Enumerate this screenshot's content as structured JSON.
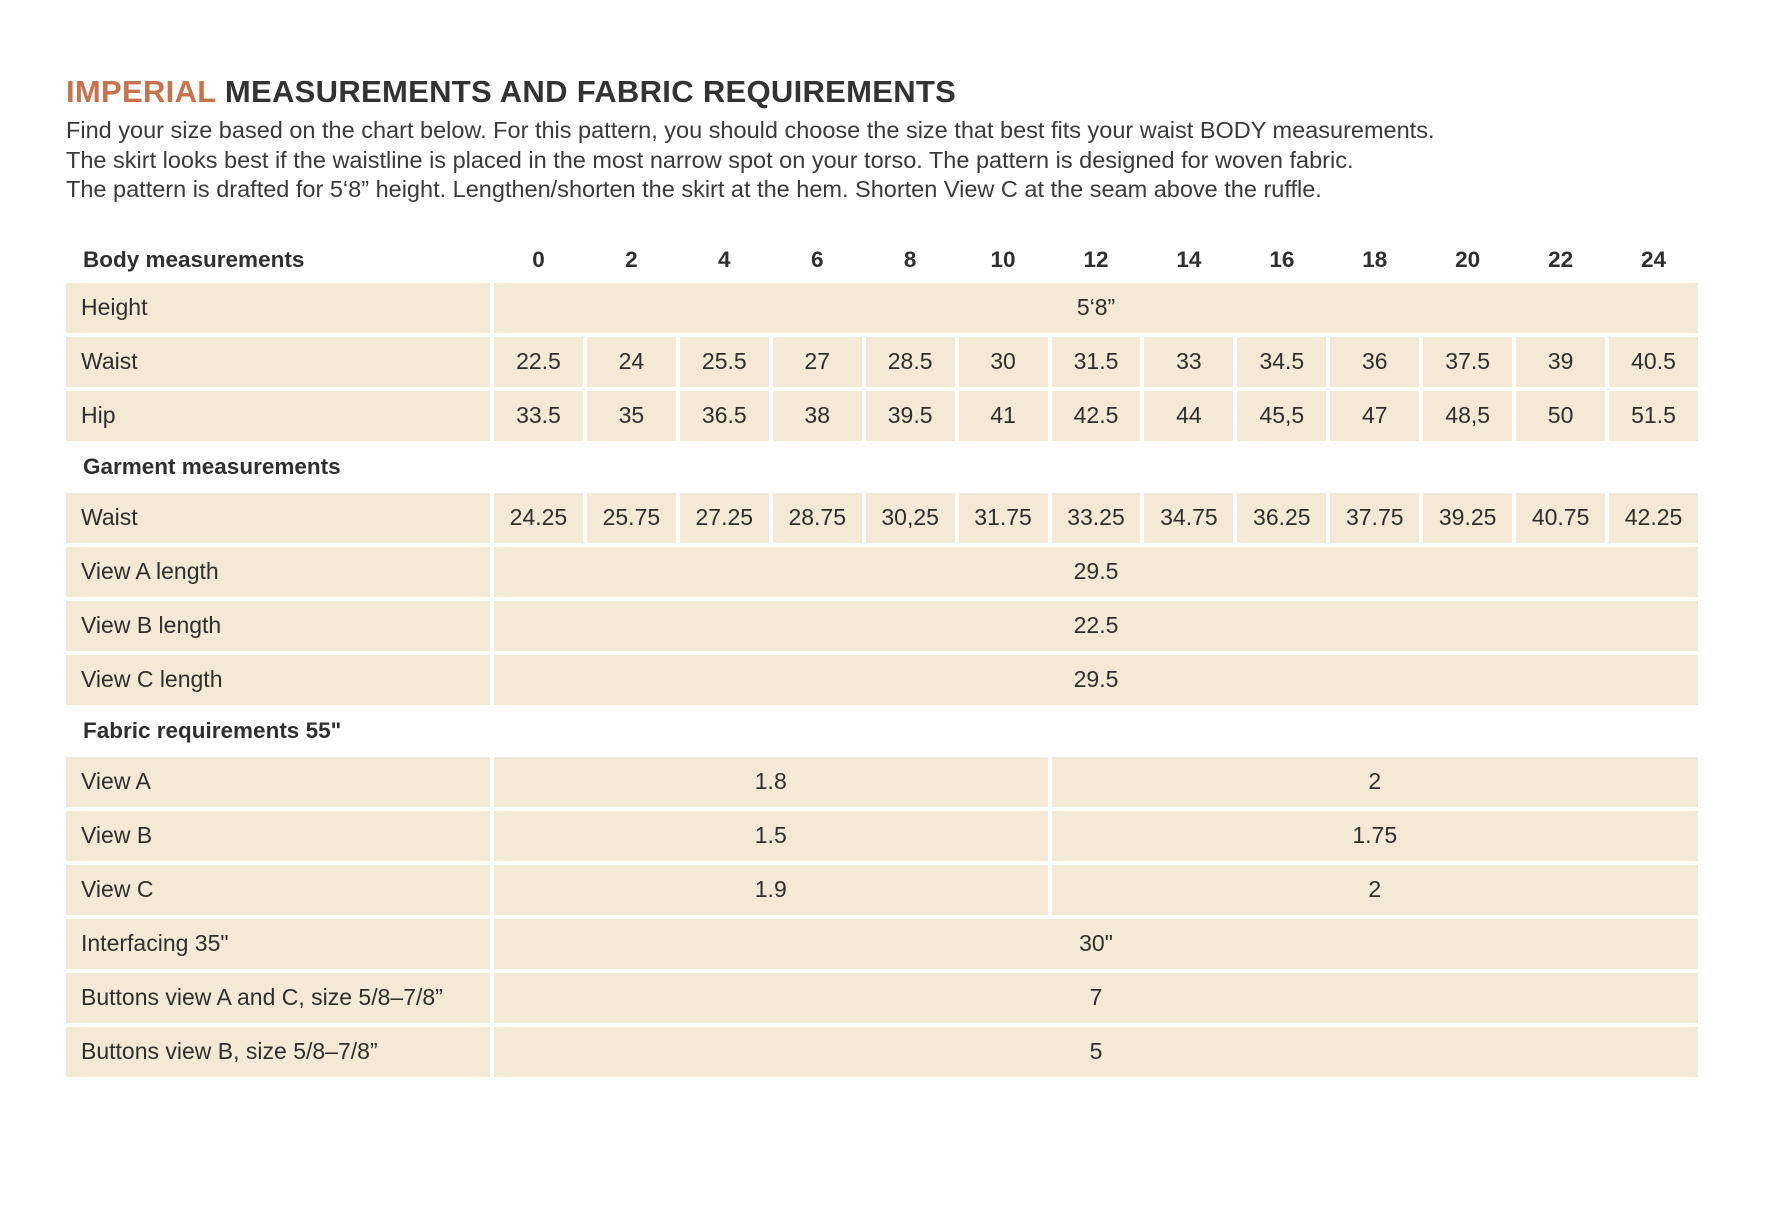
{
  "title": {
    "highlight": "IMPERIAL",
    "rest": " MEASUREMENTS AND FABRIC REQUIREMENTS"
  },
  "intro": {
    "line1": "Find your size based on the chart below. For this pattern, you should choose the size that best fits your waist BODY measurements.",
    "line2": "The skirt looks best if the waistline is placed in the most narrow spot on your torso. The pattern is designed for woven fabric.",
    "line3": "The pattern is drafted for 5‘8” height. Lengthen/shorten the skirt at the hem. Shorten View C at the seam above the ruffle."
  },
  "colors": {
    "accent": "#C8724E",
    "row_band": "#F3E9D4",
    "text": "#2f2f2f"
  },
  "table": {
    "rows": [
      {
        "kind": "header",
        "label": "Body measurements",
        "cells": [
          {
            "text": "0"
          },
          {
            "text": "2"
          },
          {
            "text": "4"
          },
          {
            "text": "6"
          },
          {
            "text": "8"
          },
          {
            "text": "10"
          },
          {
            "text": "12"
          },
          {
            "text": "14"
          },
          {
            "text": "16"
          },
          {
            "text": "18"
          },
          {
            "text": "20"
          },
          {
            "text": "22"
          },
          {
            "text": "24"
          }
        ]
      },
      {
        "kind": "data",
        "label": "Height",
        "cells": [
          {
            "text": "5‘8”",
            "span": 13
          }
        ]
      },
      {
        "kind": "data",
        "label": "Waist",
        "cells": [
          {
            "text": "22.5"
          },
          {
            "text": "24"
          },
          {
            "text": "25.5"
          },
          {
            "text": "27"
          },
          {
            "text": "28.5"
          },
          {
            "text": "30"
          },
          {
            "text": "31.5"
          },
          {
            "text": "33"
          },
          {
            "text": "34.5"
          },
          {
            "text": "36"
          },
          {
            "text": "37.5"
          },
          {
            "text": "39"
          },
          {
            "text": "40.5"
          }
        ]
      },
      {
        "kind": "data",
        "label": "Hip",
        "cells": [
          {
            "text": "33.5"
          },
          {
            "text": "35"
          },
          {
            "text": "36.5"
          },
          {
            "text": "38"
          },
          {
            "text": "39.5"
          },
          {
            "text": "41"
          },
          {
            "text": "42.5"
          },
          {
            "text": "44"
          },
          {
            "text": "45,5"
          },
          {
            "text": "47"
          },
          {
            "text": "48,5"
          },
          {
            "text": "50"
          },
          {
            "text": "51.5"
          }
        ]
      },
      {
        "kind": "section",
        "label": "Garment measurements"
      },
      {
        "kind": "data",
        "label": "Waist",
        "cells": [
          {
            "text": "24.25"
          },
          {
            "text": "25.75"
          },
          {
            "text": "27.25"
          },
          {
            "text": "28.75"
          },
          {
            "text": "30,25"
          },
          {
            "text": "31.75"
          },
          {
            "text": "33.25"
          },
          {
            "text": "34.75"
          },
          {
            "text": "36.25"
          },
          {
            "text": "37.75"
          },
          {
            "text": "39.25"
          },
          {
            "text": "40.75"
          },
          {
            "text": "42.25"
          }
        ]
      },
      {
        "kind": "data",
        "label": "View A length",
        "cells": [
          {
            "text": "29.5",
            "span": 13
          }
        ]
      },
      {
        "kind": "data",
        "label": "View B length",
        "cells": [
          {
            "text": "22.5",
            "span": 13
          }
        ]
      },
      {
        "kind": "data",
        "label": "View C length",
        "cells": [
          {
            "text": "29.5",
            "span": 13
          }
        ]
      },
      {
        "kind": "section",
        "label": "Fabric requirements 55\""
      },
      {
        "kind": "data",
        "label": "View A",
        "cells": [
          {
            "text": "1.8",
            "span": 6
          },
          {
            "text": "2",
            "span": 7
          }
        ]
      },
      {
        "kind": "data",
        "label": "View B",
        "cells": [
          {
            "text": "1.5",
            "span": 6
          },
          {
            "text": "1.75",
            "span": 7
          }
        ]
      },
      {
        "kind": "data",
        "label": "View C",
        "cells": [
          {
            "text": "1.9",
            "span": 6
          },
          {
            "text": "2",
            "span": 7
          }
        ]
      },
      {
        "kind": "data",
        "label": "Interfacing 35\"",
        "cells": [
          {
            "text": "30\"",
            "span": 13
          }
        ]
      },
      {
        "kind": "data",
        "label": "Buttons view A and C, size 5/8–7/8”",
        "cells": [
          {
            "text": "7",
            "span": 13
          }
        ]
      },
      {
        "kind": "data",
        "label": "Buttons view B, size 5/8–7/8”",
        "cells": [
          {
            "text": "5",
            "span": 13
          }
        ]
      }
    ]
  }
}
